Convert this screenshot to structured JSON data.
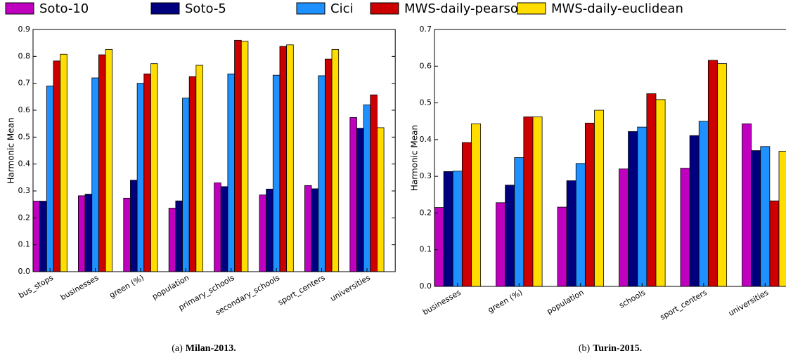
{
  "chart_data": [
    {
      "type": "bar",
      "ylabel": "Harmonic Mean",
      "caption_label": "(a)",
      "caption_title": "Milan-2013.",
      "categories": [
        "bus_stops",
        "businesses",
        "green (%)",
        "population",
        "primary_schools",
        "secondary_schools",
        "sport_centers",
        "universities"
      ],
      "ylim": [
        0,
        0.9
      ],
      "yticks": [
        {
          "value": 0,
          "label": "0.0"
        },
        0.1,
        0.2,
        0.3,
        0.4,
        0.5,
        0.6,
        0.7,
        0.8,
        0.9
      ],
      "series": [
        {
          "name": "Soto-10",
          "color": "#bf00bf",
          "values": [
            0.262,
            0.282,
            0.273,
            0.236,
            0.33,
            0.285,
            0.32,
            0.573
          ]
        },
        {
          "name": "Soto-5",
          "color": "#00007f",
          "values": [
            0.262,
            0.288,
            0.34,
            0.263,
            0.316,
            0.307,
            0.308,
            0.533
          ]
        },
        {
          "name": "Cici",
          "color": "#1e90ff",
          "values": [
            0.69,
            0.72,
            0.7,
            0.645,
            0.735,
            0.73,
            0.728,
            0.62
          ]
        },
        {
          "name": "MWS-daily-pearson",
          "color": "#cc0000",
          "values": [
            0.783,
            0.806,
            0.735,
            0.725,
            0.86,
            0.837,
            0.79,
            0.657
          ]
        },
        {
          "name": "MWS-daily-euclidean",
          "color": "#ffdd00",
          "values": [
            0.808,
            0.826,
            0.773,
            0.767,
            0.856,
            0.843,
            0.826,
            0.535
          ]
        }
      ]
    },
    {
      "type": "bar",
      "ylabel": "Harmonic Mean",
      "caption_label": "(b)",
      "caption_title": "Turin-2015.",
      "categories": [
        "businesses",
        "green (%)",
        "population",
        "schools",
        "sport_centers",
        "universities"
      ],
      "ylim": [
        0,
        0.7
      ],
      "yticks": [
        {
          "value": 0,
          "label": "0.0"
        },
        0.1,
        0.2,
        0.3,
        0.4,
        0.5,
        0.6,
        0.7
      ],
      "series": [
        {
          "color": "#bf00bf",
          "values": [
            0.215,
            0.228,
            0.216,
            0.32,
            0.322,
            0.443
          ]
        },
        {
          "color": "#00007f",
          "values": [
            0.313,
            0.276,
            0.288,
            0.422,
            0.411,
            0.37
          ]
        },
        {
          "color": "#1e90ff",
          "values": [
            0.314,
            0.351,
            0.335,
            0.434,
            0.45,
            0.381
          ]
        },
        {
          "color": "#cc0000",
          "values": [
            0.392,
            0.462,
            0.445,
            0.525,
            0.616,
            0.233
          ]
        },
        {
          "color": "#ffdd00",
          "values": [
            0.443,
            0.462,
            0.48,
            0.509,
            0.607,
            0.368
          ]
        }
      ]
    }
  ]
}
